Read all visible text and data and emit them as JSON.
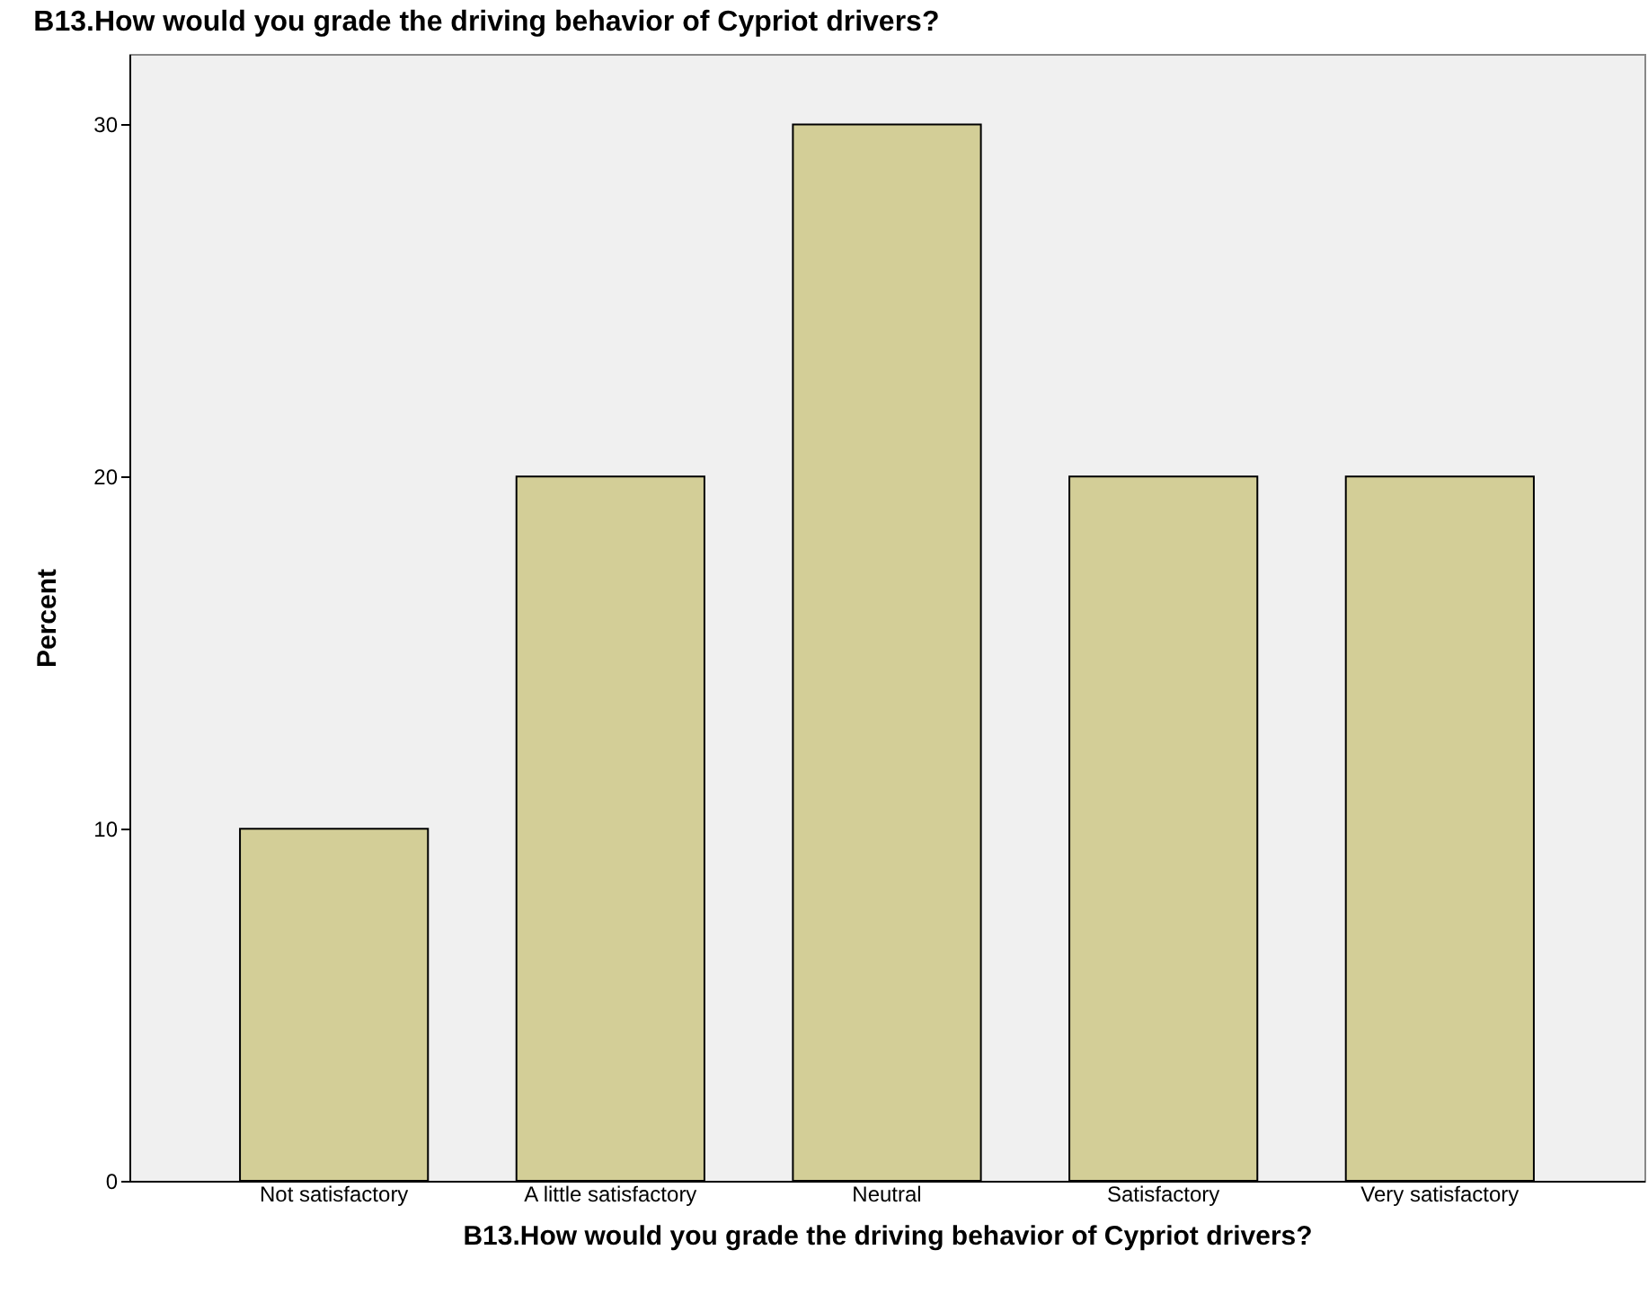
{
  "chart_data": {
    "type": "bar",
    "title": "B13.How would you grade the driving behavior of Cypriot drivers?",
    "xlabel": "B13.How would you grade the driving behavior of Cypriot drivers?",
    "ylabel": "Percent",
    "categories": [
      "Not satisfactory",
      "A little satisfactory",
      "Neutral",
      "Satisfactory",
      "Very satisfactory"
    ],
    "values": [
      10,
      20,
      30,
      20,
      20
    ],
    "color": "#d3ce97",
    "ylim": [
      0,
      32
    ],
    "yticks": [
      0,
      10,
      20,
      30
    ],
    "grid": false
  }
}
